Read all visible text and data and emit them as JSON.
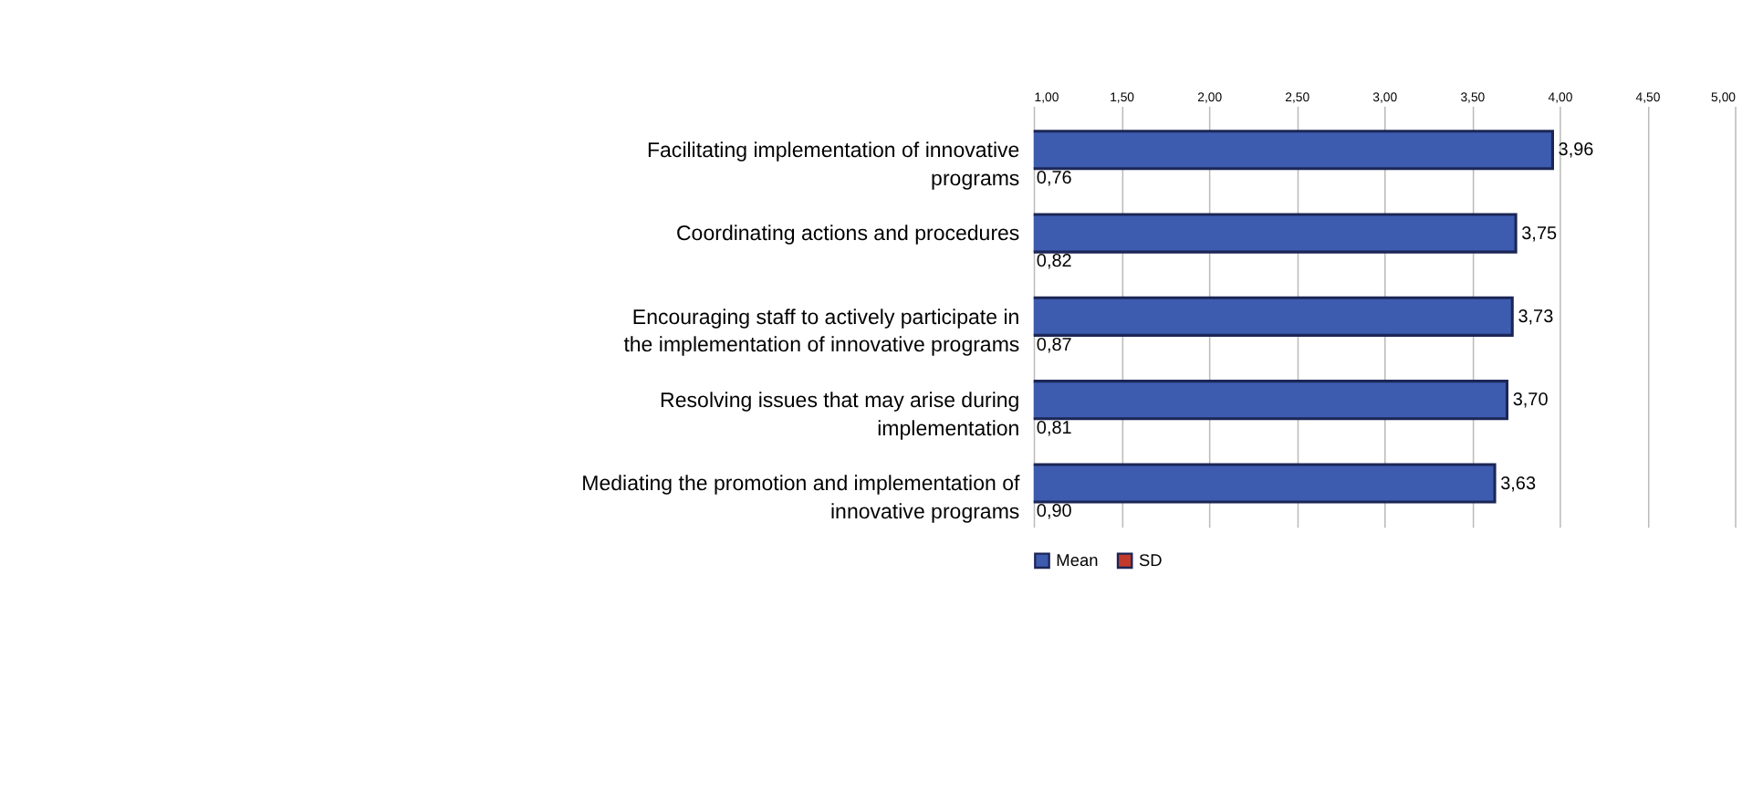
{
  "chart_data": {
    "type": "bar",
    "orientation": "horizontal",
    "categories": [
      "Facilitating implementation of innovative programs",
      "Coordinating actions and procedures",
      "Encouraging  staff to actively participate in the implementation of innovative programs",
      "Resolving  issues that may arise during implementation",
      "Mediating  the promotion and implementation of innovative programs"
    ],
    "series": [
      {
        "name": "Mean",
        "color": "#3d5cb0",
        "values": [
          3.96,
          3.75,
          3.73,
          3.7,
          3.63
        ],
        "value_labels": [
          "3,96",
          "3,75",
          "3,73",
          "3,70",
          "3,63"
        ]
      },
      {
        "name": "SD",
        "color": "#c0392b",
        "values": [
          null,
          null,
          null,
          null,
          null
        ],
        "value_labels": [
          "0,76",
          "0,82",
          "0,87",
          "0,81",
          "0,90"
        ]
      }
    ],
    "xlim": [
      1,
      5
    ],
    "xticks": [
      {
        "value": 1,
        "label": "1,00"
      },
      {
        "value": 1.5,
        "label": "1,50"
      },
      {
        "value": 2,
        "label": "2,00"
      },
      {
        "value": 2.5,
        "label": "2,50"
      },
      {
        "value": 3,
        "label": "3,00"
      },
      {
        "value": 3.5,
        "label": "3,50"
      },
      {
        "value": 4,
        "label": "4,00"
      },
      {
        "value": 4.5,
        "label": "4,50"
      },
      {
        "value": 5,
        "label": "5,00"
      }
    ],
    "grid": "x",
    "legend": "bottom"
  }
}
